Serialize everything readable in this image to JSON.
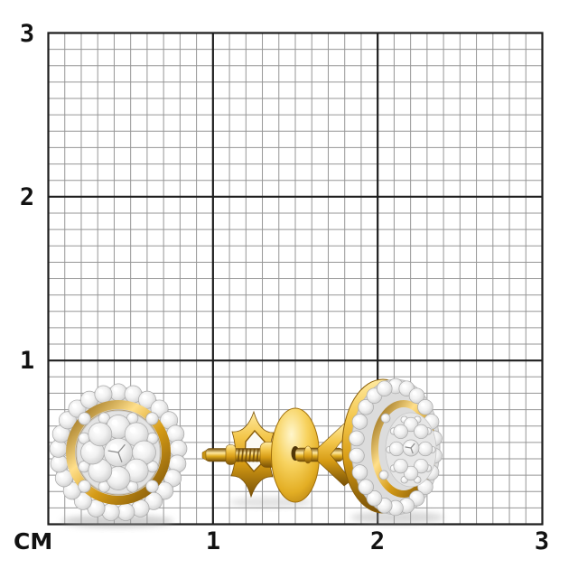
{
  "ruler": {
    "unit_label": "СМ",
    "x_ticks": [
      "1",
      "2",
      "3"
    ],
    "y_ticks": [
      "3",
      "2",
      "1"
    ]
  },
  "colors": {
    "background": "#ffffff",
    "grid_minor": "#969696",
    "grid_major": "#1e1e1e",
    "label": "#121212",
    "gold": "#e3ae24",
    "gold_highlight": "#ffeaa0",
    "gold_shadow": "#7a5208",
    "diamond": "#f2f2f2",
    "diamond_edge": "#b5b5b5",
    "shadow": "#a3a3a3"
  }
}
